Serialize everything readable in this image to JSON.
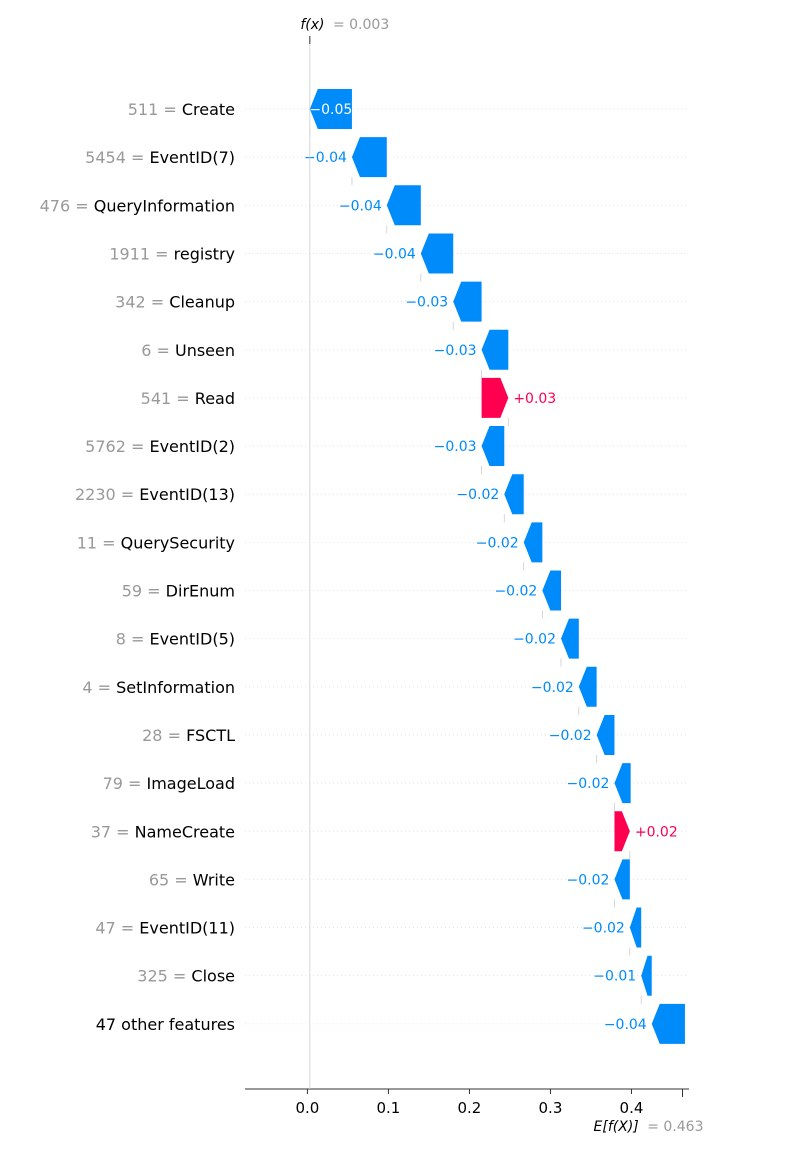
{
  "chart_data": {
    "type": "waterfall",
    "title": "",
    "fx_label": "f(x)",
    "fx_value": "= 0.003",
    "ex_label": "E[f(X)]",
    "ex_value": "= 0.463",
    "fx": 0.003,
    "base_value": 0.463,
    "xlim": [
      -0.077,
      0.471
    ],
    "ticks": [
      0.0,
      0.1,
      0.2,
      0.3,
      0.4
    ],
    "tick_labels": [
      "0.0",
      "0.1",
      "0.2",
      "0.3",
      "0.4"
    ],
    "colors": {
      "negative": "#008bfb",
      "positive": "#ff0051",
      "value_gray": "#999999",
      "name_black": "#000000"
    },
    "features": [
      {
        "value": "511",
        "name": "Create",
        "start": 0.055,
        "end": 0.003,
        "label": "−0.05"
      },
      {
        "value": "5454",
        "name": "EventID(7)",
        "start": 0.098,
        "end": 0.055,
        "label": "−0.04"
      },
      {
        "value": "476",
        "name": "QueryInformation",
        "start": 0.14,
        "end": 0.098,
        "label": "−0.04"
      },
      {
        "value": "1911",
        "name": "registry",
        "start": 0.18,
        "end": 0.14,
        "label": "−0.04"
      },
      {
        "value": "342",
        "name": "Cleanup",
        "start": 0.215,
        "end": 0.18,
        "label": "−0.03"
      },
      {
        "value": "6",
        "name": "Unseen",
        "start": 0.248,
        "end": 0.215,
        "label": "−0.03"
      },
      {
        "value": "541",
        "name": "Read",
        "start": 0.215,
        "end": 0.248,
        "label": "+0.03"
      },
      {
        "value": "5762",
        "name": "EventID(2)",
        "start": 0.243,
        "end": 0.215,
        "label": "−0.03"
      },
      {
        "value": "2230",
        "name": "EventID(13)",
        "start": 0.267,
        "end": 0.243,
        "label": "−0.02"
      },
      {
        "value": "11",
        "name": "QuerySecurity",
        "start": 0.29,
        "end": 0.267,
        "label": "−0.02"
      },
      {
        "value": "59",
        "name": "DirEnum",
        "start": 0.313,
        "end": 0.29,
        "label": "−0.02"
      },
      {
        "value": "8",
        "name": "EventID(5)",
        "start": 0.335,
        "end": 0.313,
        "label": "−0.02"
      },
      {
        "value": "4",
        "name": "SetInformation",
        "start": 0.357,
        "end": 0.335,
        "label": "−0.02"
      },
      {
        "value": "28",
        "name": "FSCTL",
        "start": 0.379,
        "end": 0.357,
        "label": "−0.02"
      },
      {
        "value": "79",
        "name": "ImageLoad",
        "start": 0.399,
        "end": 0.379,
        "label": "−0.02"
      },
      {
        "value": "37",
        "name": "NameCreate",
        "start": 0.379,
        "end": 0.398,
        "label": "+0.02"
      },
      {
        "value": "65",
        "name": "Write",
        "start": 0.398,
        "end": 0.379,
        "label": "−0.02"
      },
      {
        "value": "47",
        "name": "EventID(11)",
        "start": 0.412,
        "end": 0.398,
        "label": "−0.02"
      },
      {
        "value": "325",
        "name": "Close",
        "start": 0.425,
        "end": 0.412,
        "label": "−0.01"
      },
      {
        "value": "",
        "name": "47 other features",
        "start": 0.466,
        "end": 0.425,
        "label": "−0.04"
      }
    ]
  }
}
